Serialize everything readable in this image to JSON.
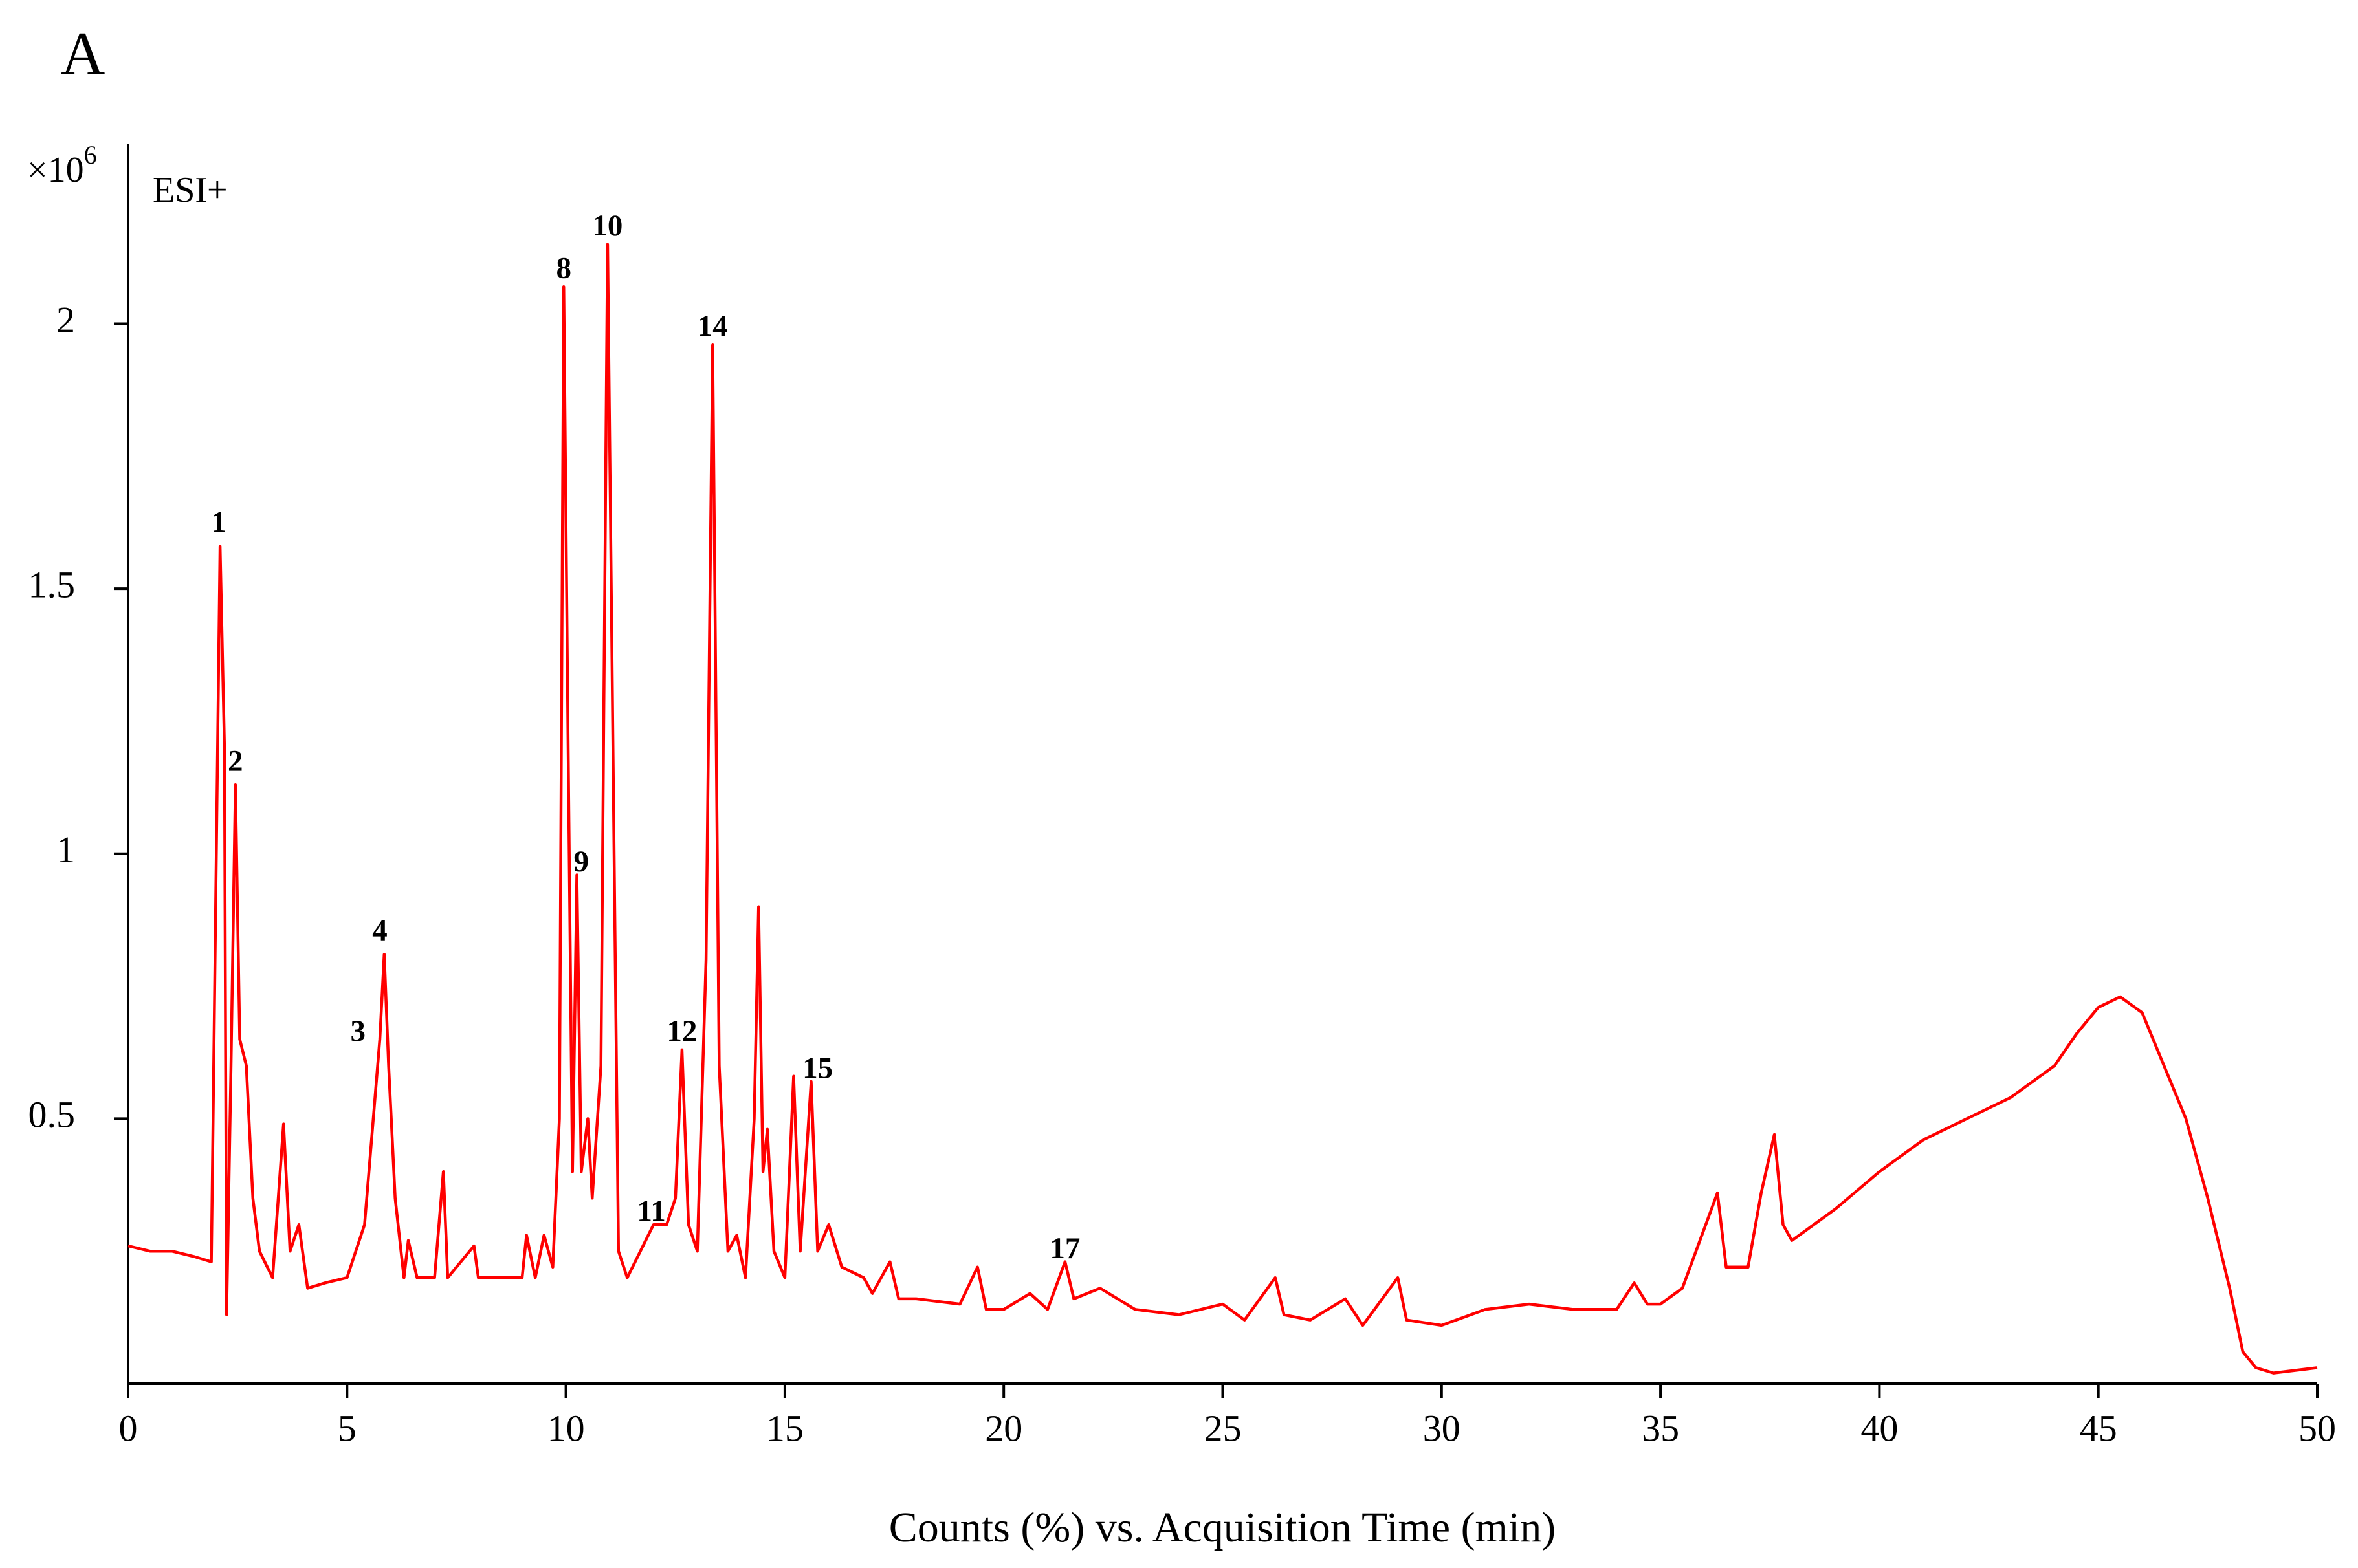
{
  "chart_data": {
    "type": "line",
    "panel_label": "A",
    "multiplier": {
      "base": "×10",
      "exponent": "6"
    },
    "mode_label": "ESI+",
    "xlabel": "Counts (%) vs. Acquisition Time (min)",
    "xlim": [
      0,
      50
    ],
    "ylim": [
      0,
      2.34
    ],
    "xticks": [
      0,
      5,
      10,
      15,
      20,
      25,
      30,
      35,
      40,
      45,
      50
    ],
    "yticks": [
      0.5,
      1,
      1.5,
      2
    ],
    "x": [
      0,
      0.5,
      1.0,
      1.5,
      1.9,
      2.0,
      2.1,
      2.2,
      2.25,
      2.35,
      2.45,
      2.55,
      2.7,
      2.85,
      3.0,
      3.3,
      3.55,
      3.7,
      3.9,
      4.1,
      4.5,
      5.0,
      5.4,
      5.6,
      5.75,
      5.85,
      5.95,
      6.1,
      6.3,
      6.4,
      6.6,
      7.0,
      7.2,
      7.3,
      7.9,
      8.0,
      9.0,
      9.1,
      9.3,
      9.5,
      9.7,
      9.85,
      9.95,
      10.05,
      10.15,
      10.25,
      10.35,
      10.5,
      10.6,
      10.8,
      10.95,
      11.1,
      11.2,
      11.4,
      11.7,
      12.0,
      12.3,
      12.5,
      12.65,
      12.8,
      13.0,
      13.2,
      13.35,
      13.5,
      13.7,
      13.9,
      14.1,
      14.3,
      14.4,
      14.5,
      14.6,
      14.75,
      15.0,
      15.2,
      15.35,
      15.6,
      15.75,
      16.0,
      16.3,
      16.8,
      17.0,
      17.4,
      17.6,
      18,
      19,
      19.4,
      19.6,
      20,
      20.6,
      21,
      21.4,
      21.6,
      22.2,
      23,
      24,
      25,
      25.5,
      26.2,
      26.4,
      27,
      27.8,
      28.2,
      29,
      29.2,
      30,
      31,
      32,
      33,
      34,
      34.4,
      34.7,
      35,
      35.5,
      35.9,
      36.3,
      36.5,
      37.0,
      37.3,
      37.6,
      37.8,
      38,
      39,
      40,
      41,
      42,
      43,
      44,
      44.5,
      45,
      45.5,
      46,
      46.5,
      47,
      47.5,
      48,
      48.3,
      48.6,
      49,
      50
    ],
    "series": [
      {
        "color": "#ff0000",
        "values": [
          0.26,
          0.25,
          0.25,
          0.24,
          0.23,
          0.9,
          1.58,
          1.2,
          0.13,
          0.6,
          1.13,
          0.65,
          0.6,
          0.35,
          0.25,
          0.2,
          0.49,
          0.25,
          0.3,
          0.18,
          0.19,
          0.2,
          0.3,
          0.5,
          0.65,
          0.81,
          0.6,
          0.35,
          0.2,
          0.27,
          0.2,
          0.2,
          0.4,
          0.2,
          0.26,
          0.2,
          0.2,
          0.28,
          0.2,
          0.28,
          0.22,
          0.5,
          2.07,
          1.2,
          0.4,
          0.96,
          0.4,
          0.5,
          0.35,
          0.6,
          2.15,
          1.0,
          0.25,
          0.2,
          0.25,
          0.3,
          0.3,
          0.35,
          0.63,
          0.3,
          0.25,
          0.8,
          1.96,
          0.6,
          0.25,
          0.28,
          0.2,
          0.5,
          0.9,
          0.4,
          0.48,
          0.25,
          0.2,
          0.58,
          0.25,
          0.57,
          0.25,
          0.3,
          0.22,
          0.2,
          0.17,
          0.23,
          0.16,
          0.16,
          0.15,
          0.22,
          0.14,
          0.14,
          0.17,
          0.14,
          0.23,
          0.16,
          0.18,
          0.14,
          0.13,
          0.15,
          0.12,
          0.2,
          0.13,
          0.12,
          0.16,
          0.11,
          0.2,
          0.12,
          0.11,
          0.14,
          0.15,
          0.14,
          0.14,
          0.19,
          0.15,
          0.15,
          0.18,
          0.27,
          0.36,
          0.22,
          0.22,
          0.36,
          0.47,
          0.3,
          0.27,
          0.33,
          0.4,
          0.46,
          0.5,
          0.54,
          0.6,
          0.66,
          0.71,
          0.73,
          0.7,
          0.6,
          0.5,
          0.35,
          0.18,
          0.06,
          0.03,
          0.02,
          0.03
        ]
      }
    ],
    "annotations": [
      {
        "text": "1",
        "x": 2.07,
        "y": 1.62
      },
      {
        "text": "2",
        "x": 2.45,
        "y": 1.17
      },
      {
        "text": "3",
        "x": 5.25,
        "y": 0.66
      },
      {
        "text": "4",
        "x": 5.75,
        "y": 0.85
      },
      {
        "text": "8",
        "x": 9.95,
        "y": 2.1
      },
      {
        "text": "9",
        "x": 10.35,
        "y": 0.98
      },
      {
        "text": "10",
        "x": 10.95,
        "y": 2.18
      },
      {
        "text": "11",
        "x": 11.95,
        "y": 0.32
      },
      {
        "text": "12",
        "x": 12.65,
        "y": 0.66
      },
      {
        "text": "14",
        "x": 13.35,
        "y": 1.99
      },
      {
        "text": "15",
        "x": 15.75,
        "y": 0.59
      },
      {
        "text": "17",
        "x": 21.4,
        "y": 0.25
      }
    ]
  }
}
